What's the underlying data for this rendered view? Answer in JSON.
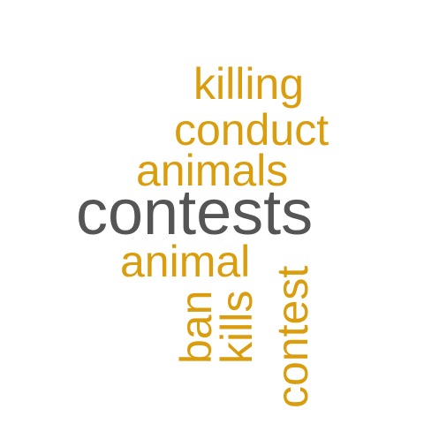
{
  "colors": {
    "background": "#ffffff",
    "primary_word": "#555555",
    "secondary_word": "#DA9D0E"
  },
  "words": [
    {
      "text": "killing",
      "color": "#DA9D0E",
      "orientation": "horizontal"
    },
    {
      "text": "conduct",
      "color": "#DA9D0E",
      "orientation": "horizontal"
    },
    {
      "text": "animals",
      "color": "#DA9D0E",
      "orientation": "horizontal"
    },
    {
      "text": "contests",
      "color": "#555555",
      "orientation": "horizontal"
    },
    {
      "text": "animal",
      "color": "#DA9D0E",
      "orientation": "horizontal"
    },
    {
      "text": "ban",
      "color": "#DA9D0E",
      "orientation": "vertical"
    },
    {
      "text": "kills",
      "color": "#DA9D0E",
      "orientation": "vertical"
    },
    {
      "text": "contest",
      "color": "#DA9D0E",
      "orientation": "vertical"
    }
  ]
}
